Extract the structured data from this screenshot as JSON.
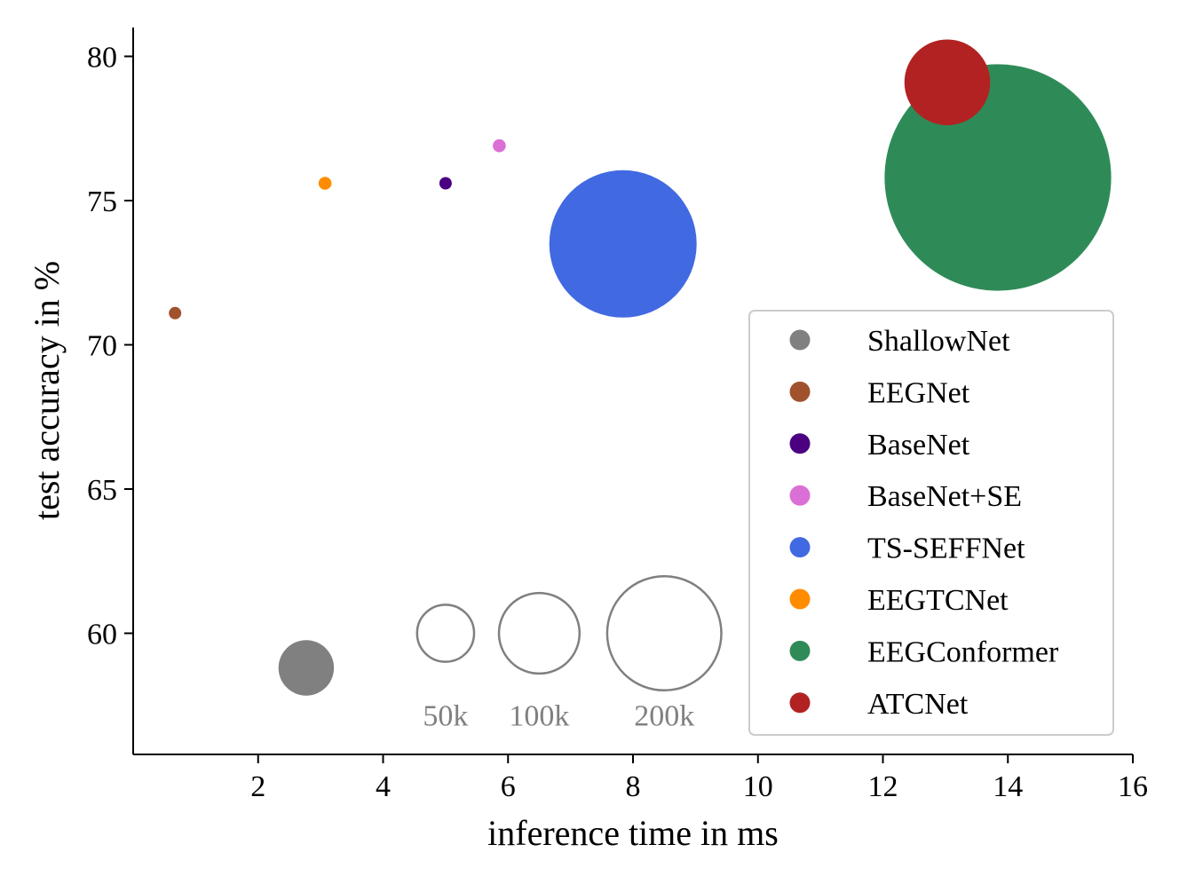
{
  "chart_data": {
    "type": "scatter",
    "title": "",
    "xlabel": "inference time in ms",
    "ylabel": "test accuracy in %",
    "xlim": [
      0,
      16
    ],
    "ylim": [
      55.8,
      81
    ],
    "xticks": [
      2,
      4,
      6,
      8,
      10,
      12,
      14,
      16
    ],
    "yticks": [
      60,
      65,
      70,
      75,
      80
    ],
    "grid": false,
    "legend_position": "lower-right",
    "size_unit": "parameters",
    "series": [
      {
        "name": "ShallowNet",
        "x": 2.77,
        "y": 58.8,
        "params": 47000,
        "color": "#808080"
      },
      {
        "name": "EEGNet",
        "x": 0.67,
        "y": 71.1,
        "params": 1300,
        "color": "#a0522d"
      },
      {
        "name": "BaseNet",
        "x": 5.0,
        "y": 75.6,
        "params": 2200,
        "color": "#4b0082"
      },
      {
        "name": "BaseNet+SE",
        "x": 5.86,
        "y": 76.9,
        "params": 2600,
        "color": "#da70d6"
      },
      {
        "name": "TS-SEFFNet",
        "x": 7.84,
        "y": 73.5,
        "params": 334000,
        "color": "#4169e1"
      },
      {
        "name": "EEGTCNet",
        "x": 3.07,
        "y": 75.6,
        "params": 2600,
        "color": "#ff8c00"
      },
      {
        "name": "EEGConformer",
        "x": 13.84,
        "y": 75.8,
        "params": 789000,
        "color": "#2e8b57"
      },
      {
        "name": "ATCNet",
        "x": 13.03,
        "y": 79.1,
        "params": 113000,
        "color": "#b22222"
      }
    ],
    "size_legend": [
      {
        "label": "50k",
        "params": 50000,
        "x": 5.0,
        "y": 60
      },
      {
        "label": "100k",
        "params": 100000,
        "x": 6.5,
        "y": 60
      },
      {
        "label": "200k",
        "params": 200000,
        "x": 8.5,
        "y": 60
      }
    ],
    "size_legend_color": "#808080"
  }
}
